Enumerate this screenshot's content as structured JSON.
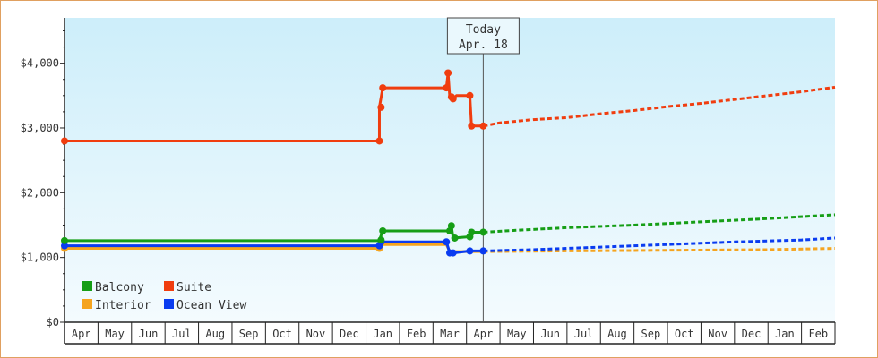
{
  "chart_data": {
    "type": "line",
    "ylim": [
      0,
      4700
    ],
    "y_ticks": [
      0,
      1000,
      2000,
      3000,
      4000
    ],
    "y_tick_labels": [
      "$0",
      "$1,000",
      "$2,000",
      "$3,000",
      "$4,000"
    ],
    "x_months": [
      "Apr",
      "May",
      "Jun",
      "Jul",
      "Aug",
      "Sep",
      "Oct",
      "Nov",
      "Dec",
      "Jan",
      "Feb",
      "Mar",
      "Apr",
      "May",
      "Jun",
      "Jul",
      "Aug",
      "Sep",
      "Oct",
      "Nov",
      "Dec",
      "Jan",
      "Feb"
    ],
    "today": {
      "label": "Today",
      "date": "Apr. 18",
      "x": 12.5
    },
    "legend_placement": "bottom-left",
    "background_gradient": [
      "#cdeefa",
      "#f4fbfe"
    ],
    "series": [
      {
        "name": "Balcony",
        "color": "#169e16",
        "history": [
          [
            0,
            1260
          ],
          [
            9.4,
            1260
          ],
          [
            9.4,
            1270
          ],
          [
            9.5,
            1410
          ],
          [
            11.5,
            1410
          ],
          [
            11.55,
            1490
          ],
          [
            11.6,
            1300
          ],
          [
            12.1,
            1320
          ],
          [
            12.15,
            1390
          ],
          [
            12.5,
            1390
          ]
        ],
        "forecast": [
          [
            12.5,
            1390
          ],
          [
            13.5,
            1420
          ],
          [
            15,
            1460
          ],
          [
            17,
            1500
          ],
          [
            19,
            1550
          ],
          [
            21,
            1600
          ],
          [
            23,
            1660
          ]
        ]
      },
      {
        "name": "Suite",
        "color": "#f03d0f",
        "history": [
          [
            0,
            2800
          ],
          [
            9.4,
            2800
          ],
          [
            9.4,
            3320
          ],
          [
            9.5,
            3620
          ],
          [
            11.4,
            3620
          ],
          [
            11.45,
            3850
          ],
          [
            11.5,
            3480
          ],
          [
            11.6,
            3450
          ],
          [
            11.7,
            3500
          ],
          [
            12.1,
            3500
          ],
          [
            12.15,
            3030
          ],
          [
            12.5,
            3030
          ]
        ],
        "forecast": [
          [
            12.5,
            3030
          ],
          [
            13,
            3080
          ],
          [
            14,
            3130
          ],
          [
            15,
            3160
          ],
          [
            16,
            3220
          ],
          [
            17,
            3270
          ],
          [
            18,
            3330
          ],
          [
            19,
            3380
          ],
          [
            20,
            3440
          ],
          [
            21,
            3500
          ],
          [
            22,
            3560
          ],
          [
            23,
            3630
          ]
        ]
      },
      {
        "name": "Interior",
        "color": "#f5a41f",
        "history": [
          [
            0,
            1140
          ],
          [
            9.4,
            1140
          ],
          [
            9.5,
            1200
          ],
          [
            11.4,
            1200
          ],
          [
            11.5,
            1090
          ],
          [
            12.5,
            1090
          ]
        ],
        "forecast": [
          [
            12.5,
            1090
          ],
          [
            15,
            1100
          ],
          [
            18,
            1110
          ],
          [
            21,
            1120
          ],
          [
            23,
            1140
          ]
        ]
      },
      {
        "name": "Ocean View",
        "color": "#0a3cf0",
        "history": [
          [
            0,
            1180
          ],
          [
            9.4,
            1180
          ],
          [
            9.4,
            1200
          ],
          [
            9.5,
            1240
          ],
          [
            11.4,
            1240
          ],
          [
            11.5,
            1070
          ],
          [
            11.6,
            1070
          ],
          [
            12.1,
            1100
          ],
          [
            12.5,
            1100
          ]
        ],
        "forecast": [
          [
            12.5,
            1100
          ],
          [
            14,
            1120
          ],
          [
            16,
            1160
          ],
          [
            18,
            1200
          ],
          [
            20,
            1240
          ],
          [
            22,
            1270
          ],
          [
            23,
            1300
          ]
        ]
      }
    ],
    "markers": {
      "Balcony": [
        [
          0,
          1260
        ],
        [
          9.45,
          1270
        ],
        [
          9.5,
          1410
        ],
        [
          11.5,
          1410
        ],
        [
          11.55,
          1490
        ],
        [
          11.65,
          1300
        ],
        [
          12.1,
          1320
        ],
        [
          12.15,
          1390
        ],
        [
          12.5,
          1390
        ]
      ],
      "Suite": [
        [
          0,
          2800
        ],
        [
          9.4,
          2800
        ],
        [
          9.45,
          3320
        ],
        [
          9.5,
          3620
        ],
        [
          11.4,
          3620
        ],
        [
          11.45,
          3850
        ],
        [
          11.55,
          3480
        ],
        [
          11.6,
          3450
        ],
        [
          12.1,
          3500
        ],
        [
          12.15,
          3030
        ],
        [
          12.5,
          3030
        ]
      ],
      "Interior": [
        [
          0,
          1140
        ],
        [
          9.4,
          1140
        ]
      ],
      "Ocean View": [
        [
          0,
          1180
        ],
        [
          9.4,
          1180
        ],
        [
          9.45,
          1240
        ],
        [
          11.4,
          1240
        ],
        [
          11.5,
          1070
        ],
        [
          11.6,
          1070
        ],
        [
          12.1,
          1100
        ],
        [
          12.5,
          1100
        ]
      ]
    }
  }
}
